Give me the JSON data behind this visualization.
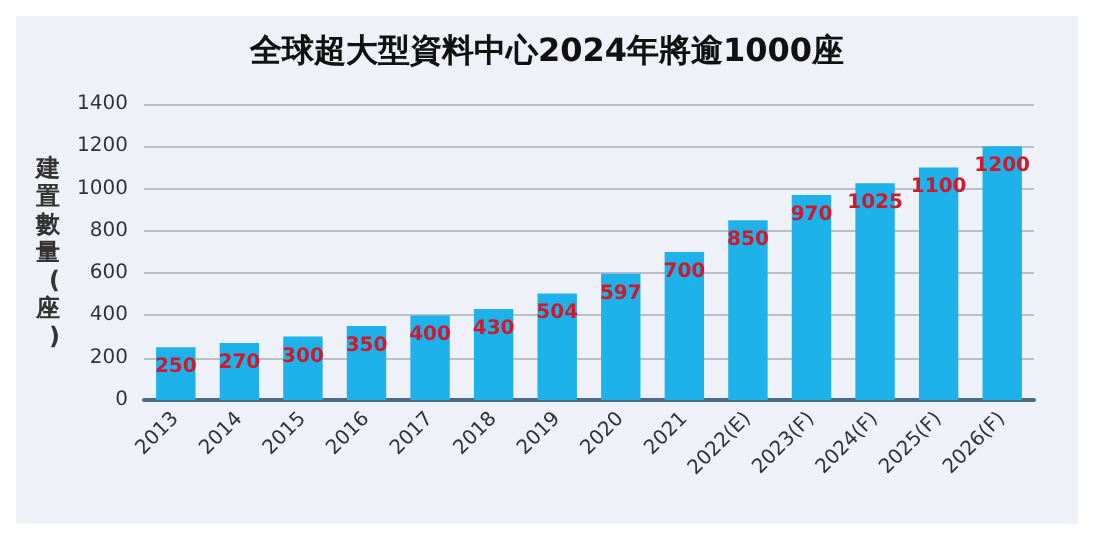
{
  "chart_data": {
    "type": "bar",
    "title": "全球超大型資料中心2024年將逾1000座",
    "ylabel": "建置數量(座)",
    "categories": [
      "2013",
      "2014",
      "2015",
      "2016",
      "2017",
      "2018",
      "2019",
      "2020",
      "2021",
      "2022(E)",
      "2023(F)",
      "2024(F)",
      "2025(F)",
      "2026(F)"
    ],
    "values": [
      250,
      270,
      300,
      350,
      400,
      430,
      504,
      597,
      700,
      850,
      970,
      1025,
      1100,
      1200
    ],
    "color": "#1fb2ea",
    "ylim": [
      0,
      1400
    ],
    "yticks": [
      0,
      200,
      400,
      600,
      800,
      1000,
      1200,
      1400
    ],
    "grid": "y",
    "data_labels": true
  }
}
